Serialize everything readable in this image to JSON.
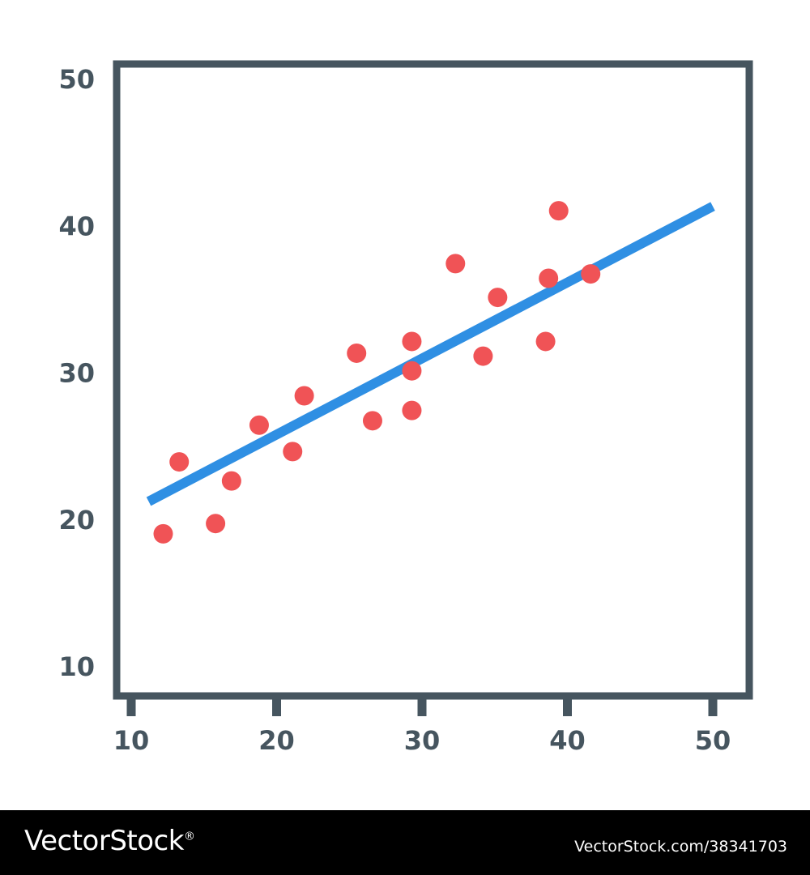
{
  "chart_data": {
    "type": "scatter",
    "title": "",
    "xlabel": "",
    "ylabel": "",
    "xlim": [
      10,
      50
    ],
    "ylim": [
      10,
      50
    ],
    "x_ticks": [
      "10",
      "20",
      "30",
      "40",
      "50"
    ],
    "y_ticks": [
      "50",
      "40",
      "30",
      "20",
      "10"
    ],
    "grid": false,
    "legend": "none",
    "points": [
      {
        "x": 12.2,
        "y": 19.0
      },
      {
        "x": 13.3,
        "y": 23.9
      },
      {
        "x": 15.8,
        "y": 19.7
      },
      {
        "x": 16.9,
        "y": 22.6
      },
      {
        "x": 18.8,
        "y": 26.4
      },
      {
        "x": 21.1,
        "y": 24.6
      },
      {
        "x": 21.9,
        "y": 28.4
      },
      {
        "x": 25.5,
        "y": 31.3
      },
      {
        "x": 26.6,
        "y": 26.7
      },
      {
        "x": 29.3,
        "y": 32.1
      },
      {
        "x": 29.3,
        "y": 30.1
      },
      {
        "x": 29.3,
        "y": 27.4
      },
      {
        "x": 32.3,
        "y": 37.4
      },
      {
        "x": 34.2,
        "y": 31.1
      },
      {
        "x": 35.2,
        "y": 35.1
      },
      {
        "x": 38.5,
        "y": 32.1
      },
      {
        "x": 38.7,
        "y": 36.4
      },
      {
        "x": 39.4,
        "y": 41.0
      },
      {
        "x": 41.6,
        "y": 36.7
      }
    ],
    "trendline": {
      "x": [
        11.2,
        50.0
      ],
      "y": [
        21.2,
        41.3
      ]
    },
    "colors": {
      "axis": "#46555f",
      "points": "#f05356",
      "trendline": "#2f8fe3"
    }
  },
  "watermark": {
    "logo": "VectorStock",
    "registered_mark": "®",
    "image_id": "VectorStock.com/38341703"
  }
}
